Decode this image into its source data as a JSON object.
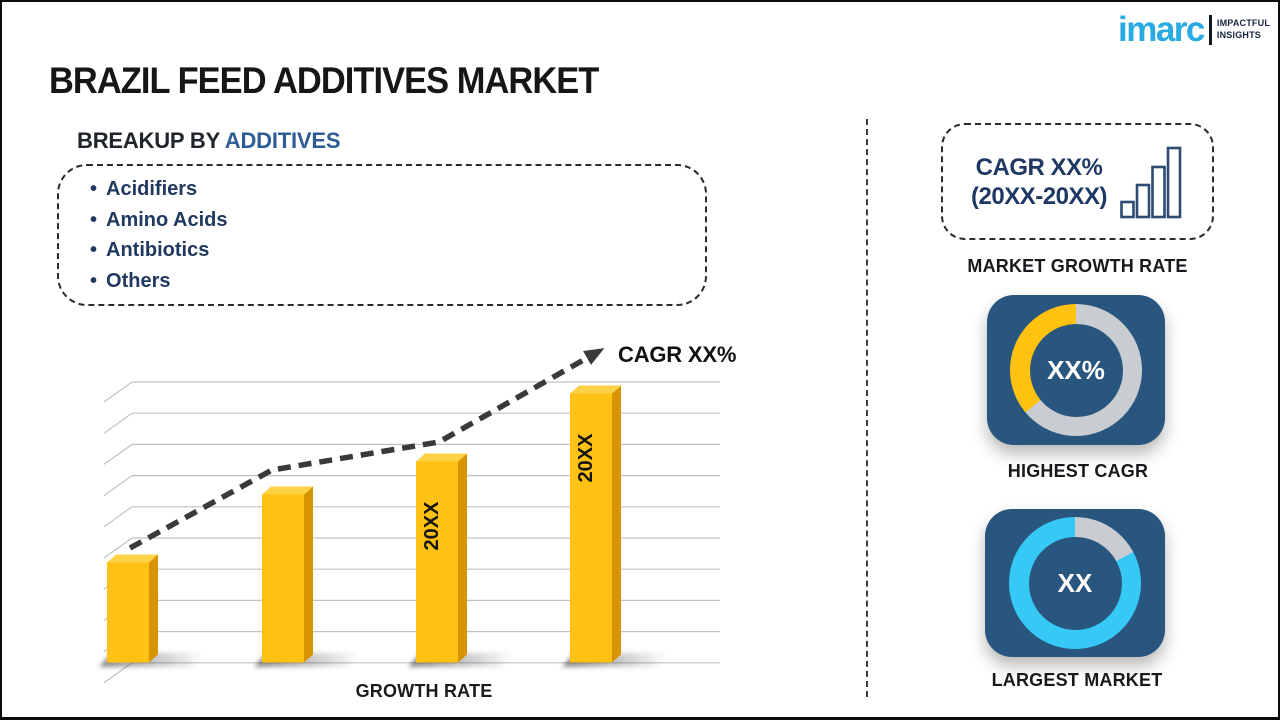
{
  "page": {
    "title": "BRAZIL FEED ADDITIVES MARKET"
  },
  "logo": {
    "brand": "imarc",
    "tagline_line1": "IMPACTFUL",
    "tagline_line2": "INSIGHTS",
    "brand_color": "#29ABE2"
  },
  "breakup": {
    "heading_prefix": "BREAKUP BY ",
    "heading_highlight": "ADDITIVES",
    "bullet": "•",
    "items": [
      "Acidifiers",
      "Amino Acids",
      "Antibiotics",
      "Others"
    ]
  },
  "chart_data": {
    "type": "bar",
    "title": "",
    "xlabel": "GROWTH RATE",
    "ylabel": "",
    "categories": [
      "",
      "",
      "20XX",
      "20XX"
    ],
    "values": [
      100,
      168,
      201,
      269
    ],
    "value_note": "bar heights in px as drawn; no numeric axis shown",
    "grid": true,
    "gridline_count": 10,
    "trend": {
      "label": "CAGR XX%",
      "style": "dashed-arrow",
      "points": [
        [
          68,
          211
        ],
        [
          210,
          133
        ],
        [
          377,
          105
        ],
        [
          532,
          17
        ]
      ]
    },
    "colors": {
      "bar_front": "#FFC113",
      "bar_side": "#D89400",
      "bar_top": "#FFD145",
      "gridline": "#C2C2C2",
      "trend_line": "#3A3A3A",
      "bar_label": "#141414"
    }
  },
  "sidebar": {
    "growth_card": {
      "line1": "CAGR XX%",
      "line2": "(20XX-20XX)",
      "label": "MARKET GROWTH RATE",
      "text_color": "#1F3864",
      "icon_color": "#2D4B73",
      "icon_bar_heights": [
        15,
        32,
        50,
        69
      ]
    },
    "highest_cagr": {
      "value": "XX%",
      "label": "HIGHEST CAGR",
      "tile_color": "#29567F",
      "ring_segments": [
        {
          "color": "#C9CDD1",
          "from": 0,
          "to": 230
        },
        {
          "color": "#FFC20E",
          "from": 230,
          "to": 360
        }
      ]
    },
    "largest_market": {
      "value": "XX",
      "label": "LARGEST MARKET",
      "tile_color": "#29567F",
      "ring_segments": [
        {
          "color": "#C9CDD1",
          "from": 0,
          "to": 62
        },
        {
          "color": "#36C9F6",
          "from": 62,
          "to": 360
        }
      ]
    }
  }
}
